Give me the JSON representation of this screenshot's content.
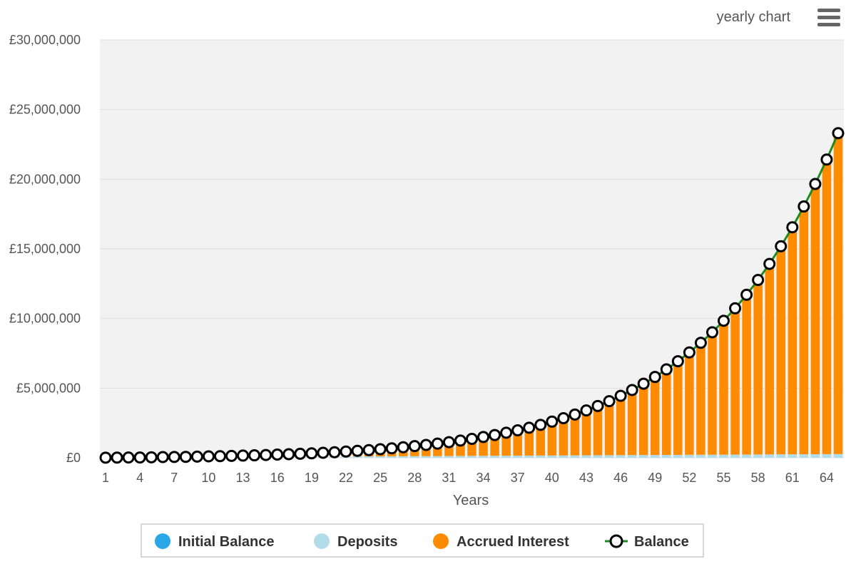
{
  "header": {
    "label": "yearly chart",
    "menu_icon": "hamburger-menu-icon"
  },
  "colors": {
    "initial_balance": "#2aa7e6",
    "deposits": "#b3dcea",
    "interest": "#ff8c00",
    "balance_line": "#1f8a1f",
    "plot_bg": "#f2f2f2",
    "grid": "#dddddd"
  },
  "chart_data": {
    "type": "bar",
    "xlabel": "Years",
    "ylabel": "",
    "ylim": [
      0,
      30000000
    ],
    "yticks": [
      "£0",
      "£5,000,000",
      "£10,000,000",
      "£15,000,000",
      "£20,000,000",
      "£25,000,000",
      "£30,000,000"
    ],
    "xticks": [
      "1",
      "4",
      "7",
      "10",
      "13",
      "16",
      "19",
      "22",
      "25",
      "28",
      "31",
      "34",
      "37",
      "40",
      "43",
      "46",
      "49",
      "52",
      "55",
      "58",
      "61",
      "64"
    ],
    "stacked": true,
    "grid": true,
    "legend_position": "bottom-center",
    "x": [
      1,
      2,
      3,
      4,
      5,
      6,
      7,
      8,
      9,
      10,
      11,
      12,
      13,
      14,
      15,
      16,
      17,
      18,
      19,
      20,
      21,
      22,
      23,
      24,
      25,
      26,
      27,
      28,
      29,
      30,
      31,
      32,
      33,
      34,
      35,
      36,
      37,
      38,
      39,
      40,
      41,
      42,
      43,
      44,
      45,
      46,
      47,
      48,
      49,
      50,
      51,
      52,
      53,
      54,
      55,
      56,
      57,
      58,
      59,
      60,
      61,
      62,
      63,
      64,
      65
    ],
    "series": [
      {
        "name": "Initial Balance",
        "type": "bar",
        "values": [
          5000,
          5000,
          5000,
          5000,
          5000,
          5000,
          5000,
          5000,
          5000,
          5000,
          5000,
          5000,
          5000,
          5000,
          5000,
          5000,
          5000,
          5000,
          5000,
          5000,
          5000,
          5000,
          5000,
          5000,
          5000,
          5000,
          5000,
          5000,
          5000,
          5000,
          5000,
          5000,
          5000,
          5000,
          5000,
          5000,
          5000,
          5000,
          5000,
          5000,
          5000,
          5000,
          5000,
          5000,
          5000,
          5000,
          5000,
          5000,
          5000,
          5000,
          5000,
          5000,
          5000,
          5000,
          5000,
          5000,
          5000,
          5000,
          5000,
          5000,
          5000,
          5000,
          5000,
          5000,
          5000
        ]
      },
      {
        "name": "Deposits",
        "type": "bar",
        "values": [
          4000,
          8000,
          12000,
          16000,
          20000,
          24000,
          28000,
          32000,
          36000,
          40000,
          44000,
          48000,
          52000,
          56000,
          60000,
          64000,
          68000,
          72000,
          76000,
          80000,
          84000,
          88000,
          92000,
          96000,
          100000,
          104000,
          108000,
          112000,
          116000,
          120000,
          124000,
          128000,
          132000,
          136000,
          140000,
          144000,
          148000,
          152000,
          156000,
          160000,
          164000,
          168000,
          172000,
          176000,
          180000,
          184000,
          188000,
          192000,
          196000,
          200000,
          204000,
          208000,
          212000,
          216000,
          220000,
          224000,
          228000,
          232000,
          236000,
          240000,
          244000,
          248000,
          252000,
          256000,
          260000
        ]
      },
      {
        "name": "Accrued Interest",
        "type": "bar",
        "values": [
          0,
          0,
          0,
          0,
          10000,
          20000,
          25000,
          30000,
          40000,
          55000,
          65000,
          80000,
          100000,
          115000,
          135000,
          160000,
          185000,
          210000,
          240000,
          275000,
          310000,
          355000,
          400000,
          450000,
          510000,
          570000,
          640000,
          720000,
          800000,
          890000,
          990000,
          1100000,
          1220000,
          1350000,
          1490000,
          1650000,
          1820000,
          2000000,
          2200000,
          2430000,
          2670000,
          2930000,
          3220000,
          3540000,
          3880000,
          4260000,
          4670000,
          5120000,
          5600000,
          6140000,
          6720000,
          7350000,
          8040000,
          8790000,
          9610000,
          10500000,
          11470000,
          12530000,
          13680000,
          14940000,
          16300000,
          17790000,
          19400000,
          21150000,
          23040000
        ]
      },
      {
        "name": "Balance",
        "type": "line",
        "values": [
          9000,
          13000,
          17000,
          21000,
          35000,
          49000,
          58000,
          67000,
          81000,
          100000,
          114000,
          133000,
          157000,
          176000,
          200000,
          229000,
          258000,
          287000,
          321000,
          360000,
          399000,
          448000,
          497000,
          551000,
          615000,
          679000,
          753000,
          837000,
          921000,
          1015000,
          1119000,
          1233000,
          1357000,
          1491000,
          1635000,
          1799000,
          1973000,
          2157000,
          2361000,
          2595000,
          2839000,
          3103000,
          3397000,
          3721000,
          4065000,
          4449000,
          4863000,
          5317000,
          5801000,
          6345000,
          6929000,
          7563000,
          8257000,
          9011000,
          9835000,
          10729000,
          11703000,
          12767000,
          13921000,
          15185000,
          16549000,
          18043000,
          19657000,
          21411000,
          23305000
        ]
      }
    ]
  }
}
